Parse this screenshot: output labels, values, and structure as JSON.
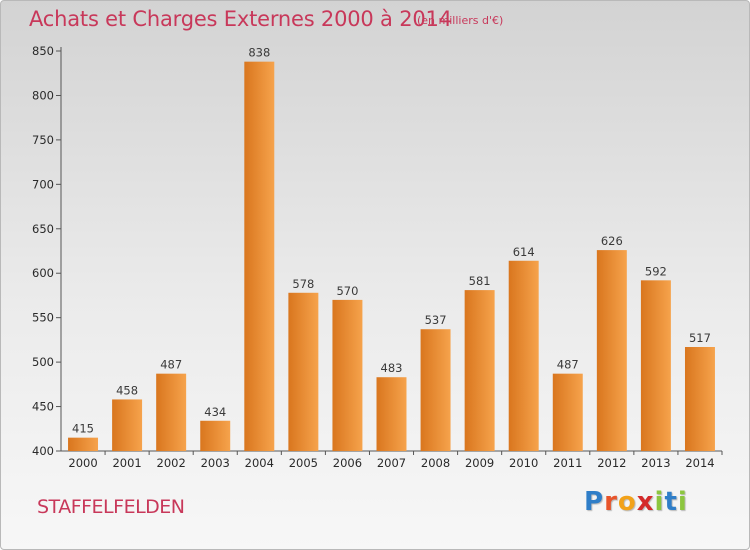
{
  "title": "Achats et Charges Externes 2000 à 2014",
  "unit_note": "(en milliers d'€)",
  "commune": "STAFFELFELDEN",
  "logo": {
    "letters": [
      "P",
      "r",
      "o",
      "x",
      "i",
      "t",
      "i"
    ],
    "colors": [
      "#2f7ec8",
      "#e8542a",
      "#f2a21a",
      "#d42a2a",
      "#8cc63f",
      "#2f7ec8",
      "#8cc63f"
    ]
  },
  "colors": {
    "bar_light": "#f6a34c",
    "bar_dark": "#d9761e",
    "title": "#c8385a"
  },
  "chart_data": {
    "type": "bar",
    "categories": [
      "2000",
      "2001",
      "2002",
      "2003",
      "2004",
      "2005",
      "2006",
      "2007",
      "2008",
      "2009",
      "2010",
      "2011",
      "2012",
      "2013",
      "2014"
    ],
    "values": [
      415,
      458,
      487,
      434,
      838,
      578,
      570,
      483,
      537,
      581,
      614,
      487,
      626,
      592,
      517
    ],
    "title": "Achats et Charges Externes 2000 à 2014",
    "xlabel": "",
    "ylabel": "",
    "ylim": [
      400,
      850
    ],
    "yticks": [
      400,
      450,
      500,
      550,
      600,
      650,
      700,
      750,
      800,
      850
    ],
    "grid": false,
    "legend": "none",
    "data_labels": true
  }
}
